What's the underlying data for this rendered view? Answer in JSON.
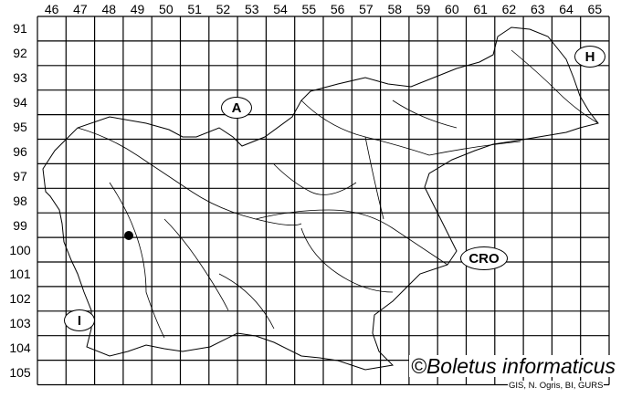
{
  "map": {
    "column_labels": [
      "46",
      "47",
      "48",
      "49",
      "50",
      "51",
      "52",
      "53",
      "54",
      "55",
      "56",
      "57",
      "58",
      "59",
      "60",
      "61",
      "62",
      "63",
      "64",
      "65"
    ],
    "row_labels": [
      "91",
      "92",
      "93",
      "94",
      "95",
      "96",
      "97",
      "98",
      "99",
      "100",
      "101",
      "102",
      "103",
      "104",
      "105"
    ],
    "country_labels": {
      "austria": "A",
      "hungary": "H",
      "italy": "I",
      "croatia": "CRO"
    },
    "record_marker": {
      "column": "48",
      "row": "99",
      "color": "#000000"
    },
    "line_color": "#000000"
  },
  "copyright": "©Boletus informaticus",
  "credits": "GIS, N. Ogris, BI, GURS"
}
